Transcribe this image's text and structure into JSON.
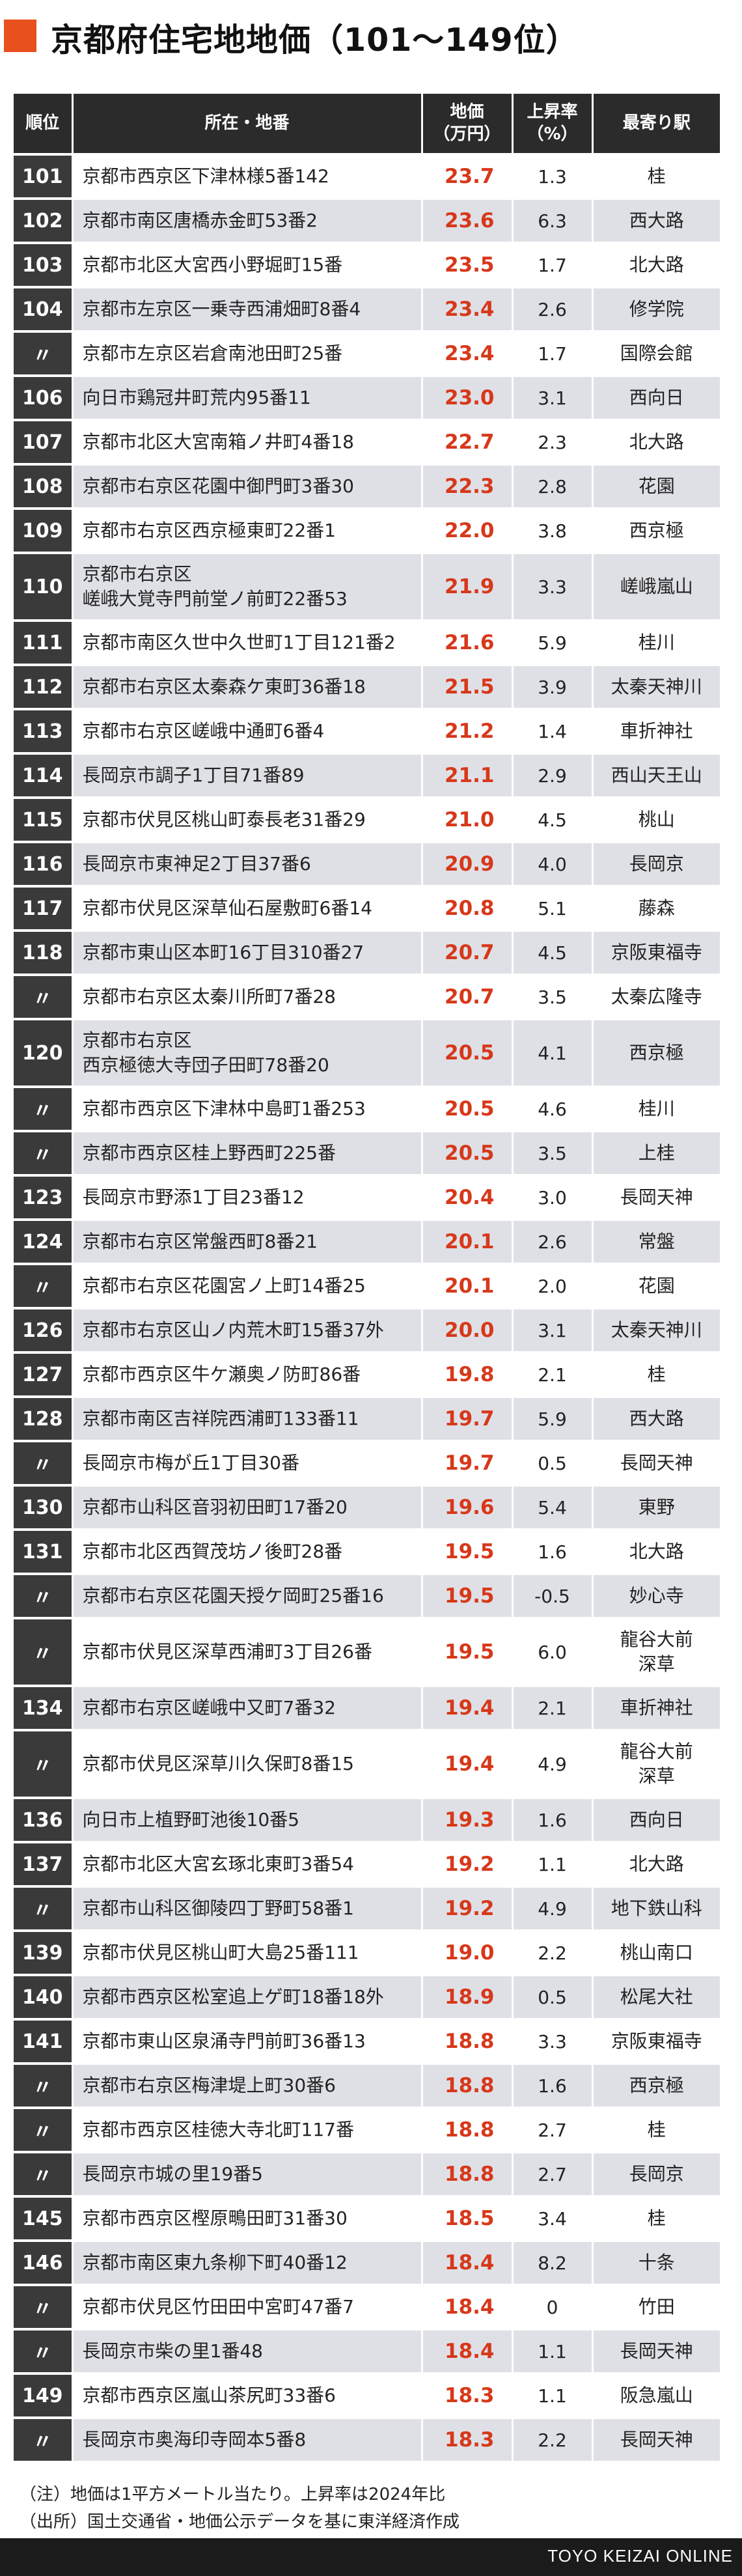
{
  "title": "京都府住宅地地価（101〜149位）",
  "colors": {
    "accent": "#e8501e",
    "price": "#d7381a",
    "header_bg": "#2b2b2b",
    "rank_bg": "#3a3a3a",
    "stripe": "#dfe0e6"
  },
  "table": {
    "headers": {
      "rank": "順位",
      "address": "所在・地番",
      "price": "地価\n（万円）",
      "rate": "上昇率\n（%）",
      "station": "最寄り駅"
    },
    "rows": [
      {
        "rank": "101",
        "address": "京都市西京区下津林様5番142",
        "price": "23.7",
        "rate": "1.3",
        "station": "桂"
      },
      {
        "rank": "102",
        "address": "京都市南区唐橋赤金町53番2",
        "price": "23.6",
        "rate": "6.3",
        "station": "西大路"
      },
      {
        "rank": "103",
        "address": "京都市北区大宮西小野堀町15番",
        "price": "23.5",
        "rate": "1.7",
        "station": "北大路"
      },
      {
        "rank": "104",
        "address": "京都市左京区一乗寺西浦畑町8番4",
        "price": "23.4",
        "rate": "2.6",
        "station": "修学院"
      },
      {
        "rank": "〃",
        "address": "京都市左京区岩倉南池田町25番",
        "price": "23.4",
        "rate": "1.7",
        "station": "国際会館"
      },
      {
        "rank": "106",
        "address": "向日市鶏冠井町荒内95番11",
        "price": "23.0",
        "rate": "3.1",
        "station": "西向日"
      },
      {
        "rank": "107",
        "address": "京都市北区大宮南箱ノ井町4番18",
        "price": "22.7",
        "rate": "2.3",
        "station": "北大路"
      },
      {
        "rank": "108",
        "address": "京都市右京区花園中御門町3番30",
        "price": "22.3",
        "rate": "2.8",
        "station": "花園"
      },
      {
        "rank": "109",
        "address": "京都市右京区西京極東町22番1",
        "price": "22.0",
        "rate": "3.8",
        "station": "西京極"
      },
      {
        "rank": "110",
        "address": "京都市右京区\n嵯峨大覚寺門前堂ノ前町22番53",
        "price": "21.9",
        "rate": "3.3",
        "station": "嵯峨嵐山"
      },
      {
        "rank": "111",
        "address": "京都市南区久世中久世町1丁目121番2",
        "price": "21.6",
        "rate": "5.9",
        "station": "桂川"
      },
      {
        "rank": "112",
        "address": "京都市右京区太秦森ケ東町36番18",
        "price": "21.5",
        "rate": "3.9",
        "station": "太秦天神川"
      },
      {
        "rank": "113",
        "address": "京都市右京区嵯峨中通町6番4",
        "price": "21.2",
        "rate": "1.4",
        "station": "車折神社"
      },
      {
        "rank": "114",
        "address": "長岡京市調子1丁目71番89",
        "price": "21.1",
        "rate": "2.9",
        "station": "西山天王山"
      },
      {
        "rank": "115",
        "address": "京都市伏見区桃山町泰長老31番29",
        "price": "21.0",
        "rate": "4.5",
        "station": "桃山"
      },
      {
        "rank": "116",
        "address": "長岡京市東神足2丁目37番6",
        "price": "20.9",
        "rate": "4.0",
        "station": "長岡京"
      },
      {
        "rank": "117",
        "address": "京都市伏見区深草仙石屋敷町6番14",
        "price": "20.8",
        "rate": "5.1",
        "station": "藤森"
      },
      {
        "rank": "118",
        "address": "京都市東山区本町16丁目310番27",
        "price": "20.7",
        "rate": "4.5",
        "station": "京阪東福寺"
      },
      {
        "rank": "〃",
        "address": "京都市右京区太秦川所町7番28",
        "price": "20.7",
        "rate": "3.5",
        "station": "太秦広隆寺"
      },
      {
        "rank": "120",
        "address": "京都市右京区\n西京極徳大寺団子田町78番20",
        "price": "20.5",
        "rate": "4.1",
        "station": "西京極"
      },
      {
        "rank": "〃",
        "address": "京都市西京区下津林中島町1番253",
        "price": "20.5",
        "rate": "4.6",
        "station": "桂川"
      },
      {
        "rank": "〃",
        "address": "京都市西京区桂上野西町225番",
        "price": "20.5",
        "rate": "3.5",
        "station": "上桂"
      },
      {
        "rank": "123",
        "address": "長岡京市野添1丁目23番12",
        "price": "20.4",
        "rate": "3.0",
        "station": "長岡天神"
      },
      {
        "rank": "124",
        "address": "京都市右京区常盤西町8番21",
        "price": "20.1",
        "rate": "2.6",
        "station": "常盤"
      },
      {
        "rank": "〃",
        "address": "京都市右京区花園宮ノ上町14番25",
        "price": "20.1",
        "rate": "2.0",
        "station": "花園"
      },
      {
        "rank": "126",
        "address": "京都市右京区山ノ内荒木町15番37外",
        "price": "20.0",
        "rate": "3.1",
        "station": "太秦天神川"
      },
      {
        "rank": "127",
        "address": "京都市西京区牛ケ瀬奥ノ防町86番",
        "price": "19.8",
        "rate": "2.1",
        "station": "桂"
      },
      {
        "rank": "128",
        "address": "京都市南区吉祥院西浦町133番11",
        "price": "19.7",
        "rate": "5.9",
        "station": "西大路"
      },
      {
        "rank": "〃",
        "address": "長岡京市梅が丘1丁目30番",
        "price": "19.7",
        "rate": "0.5",
        "station": "長岡天神"
      },
      {
        "rank": "130",
        "address": "京都市山科区音羽初田町17番20",
        "price": "19.6",
        "rate": "5.4",
        "station": "東野"
      },
      {
        "rank": "131",
        "address": "京都市北区西賀茂坊ノ後町28番",
        "price": "19.5",
        "rate": "1.6",
        "station": "北大路"
      },
      {
        "rank": "〃",
        "address": "京都市右京区花園天授ケ岡町25番16",
        "price": "19.5",
        "rate": "-0.5",
        "station": "妙心寺"
      },
      {
        "rank": "〃",
        "address": "京都市伏見区深草西浦町3丁目26番",
        "price": "19.5",
        "rate": "6.0",
        "station": "龍谷大前\n深草"
      },
      {
        "rank": "134",
        "address": "京都市右京区嵯峨中又町7番32",
        "price": "19.4",
        "rate": "2.1",
        "station": "車折神社"
      },
      {
        "rank": "〃",
        "address": "京都市伏見区深草川久保町8番15",
        "price": "19.4",
        "rate": "4.9",
        "station": "龍谷大前\n深草"
      },
      {
        "rank": "136",
        "address": "向日市上植野町池後10番5",
        "price": "19.3",
        "rate": "1.6",
        "station": "西向日"
      },
      {
        "rank": "137",
        "address": "京都市北区大宮玄琢北東町3番54",
        "price": "19.2",
        "rate": "1.1",
        "station": "北大路"
      },
      {
        "rank": "〃",
        "address": "京都市山科区御陵四丁野町58番1",
        "price": "19.2",
        "rate": "4.9",
        "station": "地下鉄山科"
      },
      {
        "rank": "139",
        "address": "京都市伏見区桃山町大島25番111",
        "price": "19.0",
        "rate": "2.2",
        "station": "桃山南口"
      },
      {
        "rank": "140",
        "address": "京都市西京区松室追上ゲ町18番18外",
        "price": "18.9",
        "rate": "0.5",
        "station": "松尾大社"
      },
      {
        "rank": "141",
        "address": "京都市東山区泉涌寺門前町36番13",
        "price": "18.8",
        "rate": "3.3",
        "station": "京阪東福寺"
      },
      {
        "rank": "〃",
        "address": "京都市右京区梅津堤上町30番6",
        "price": "18.8",
        "rate": "1.6",
        "station": "西京極"
      },
      {
        "rank": "〃",
        "address": "京都市西京区桂徳大寺北町117番",
        "price": "18.8",
        "rate": "2.7",
        "station": "桂"
      },
      {
        "rank": "〃",
        "address": "長岡京市城の里19番5",
        "price": "18.8",
        "rate": "2.7",
        "station": "長岡京"
      },
      {
        "rank": "145",
        "address": "京都市西京区樫原鴫田町31番30",
        "price": "18.5",
        "rate": "3.4",
        "station": "桂"
      },
      {
        "rank": "146",
        "address": "京都市南区東九条柳下町40番12",
        "price": "18.4",
        "rate": "8.2",
        "station": "十条"
      },
      {
        "rank": "〃",
        "address": "京都市伏見区竹田田中宮町47番7",
        "price": "18.4",
        "rate": "0",
        "station": "竹田"
      },
      {
        "rank": "〃",
        "address": "長岡京市柴の里1番48",
        "price": "18.4",
        "rate": "1.1",
        "station": "長岡天神"
      },
      {
        "rank": "149",
        "address": "京都市西京区嵐山茶尻町33番6",
        "price": "18.3",
        "rate": "1.1",
        "station": "阪急嵐山"
      },
      {
        "rank": "〃",
        "address": "長岡京市奥海印寺岡本5番8",
        "price": "18.3",
        "rate": "2.2",
        "station": "長岡天神"
      }
    ]
  },
  "notes": {
    "note1": "（注）地価は1平方メートル当たり。上昇率は2024年比",
    "note2": "（出所）国土交通省・地価公示データを基に東洋経済作成"
  },
  "credit": "TOYO KEIZAI ONLINE"
}
